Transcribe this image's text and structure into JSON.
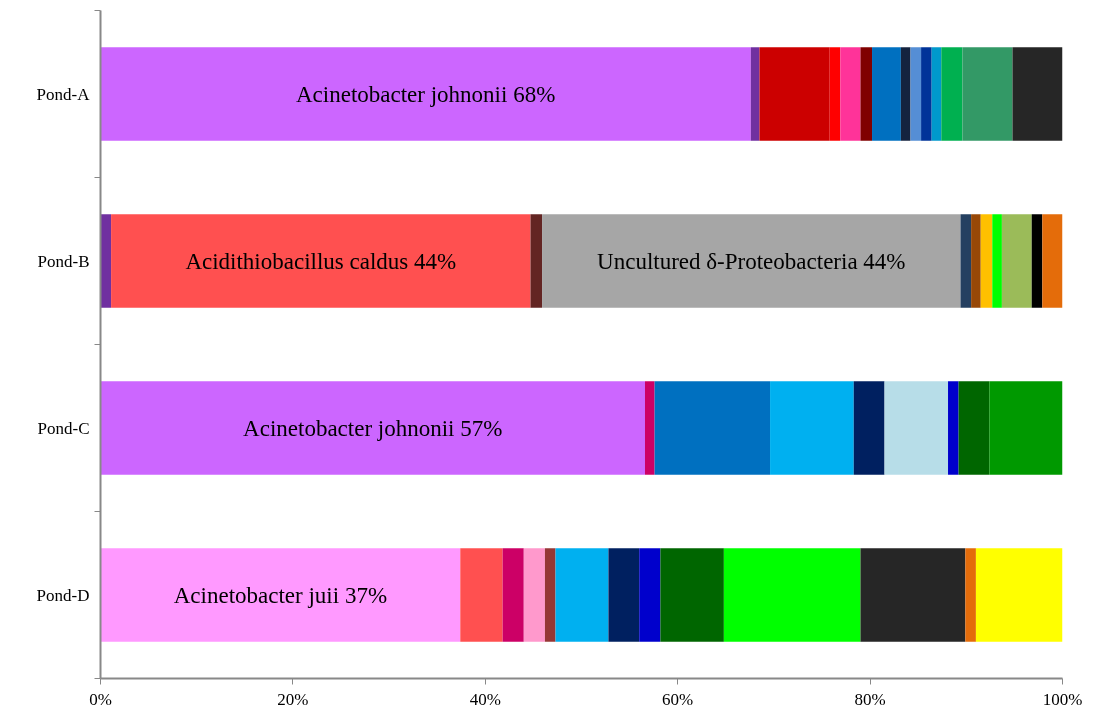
{
  "chart_data": {
    "type": "bar",
    "orientation": "horizontal",
    "stacked": true,
    "categories": [
      "Pond-A",
      "Pond-B",
      "Pond-C",
      "Pond-D"
    ],
    "xlim": [
      0,
      100
    ],
    "xticks": [
      {
        "value": 0,
        "label": "0%"
      },
      {
        "value": 20,
        "label": "20%"
      },
      {
        "value": 40,
        "label": "40%"
      },
      {
        "value": 60,
        "label": "60%"
      },
      {
        "value": 80,
        "label": "80%"
      },
      {
        "value": 100,
        "label": "100%"
      }
    ],
    "series": [
      {
        "values": [
          67.6,
          1.1,
          56.6,
          37.4
        ],
        "colors": [
          "#cc66ff",
          "#7030a0",
          "#cc66ff",
          "#ff99ff"
        ],
        "value_labels": [
          "Acinetobacter johnonii 68%",
          null,
          "Acinetobacter johnonii 57%",
          "Acinetobacter juii 37%"
        ]
      },
      {
        "values": [
          0.9,
          43.6,
          1.0,
          4.4
        ],
        "colors": [
          "#7030a0",
          "#ff5050",
          "#cc0066",
          "#ff5050"
        ],
        "value_labels": [
          null,
          "Acidithiobacillus caldus 44%",
          null,
          null
        ]
      },
      {
        "values": [
          7.3,
          1.2,
          12.0,
          2.2
        ],
        "colors": [
          "#cc0000",
          "#632523",
          "#0070c0",
          "#cc0066"
        ]
      },
      {
        "values": [
          1.1,
          43.5,
          8.7,
          2.2
        ],
        "colors": [
          "#ff0000",
          "#a6a6a6",
          "#00b0f0",
          "#ff99cc"
        ],
        "value_labels": [
          null,
          "Uncultured δ-Proteobacteria 44%",
          null,
          null
        ]
      },
      {
        "values": [
          2.1,
          1.1,
          3.2,
          1.1
        ],
        "colors": [
          "#ff3399",
          "#254061",
          "#002060",
          "#953735"
        ]
      },
      {
        "values": [
          1.2,
          1.0,
          6.6,
          5.5
        ],
        "colors": [
          "#800000",
          "#984807",
          "#b7dde8",
          "#00b0f0"
        ]
      },
      {
        "values": [
          3.0,
          1.2,
          1.1,
          3.2
        ],
        "colors": [
          "#0070c0",
          "#ffc000",
          "#0000cc",
          "#002060"
        ]
      },
      {
        "values": [
          1.0,
          1.0,
          3.2,
          2.2
        ],
        "colors": [
          "#14233f",
          "#00ff00",
          "#006600",
          "#0000cc"
        ]
      },
      {
        "values": [
          1.1,
          3.1,
          7.6,
          6.6
        ],
        "colors": [
          "#558ed5",
          "#9bbb59",
          "#009900",
          "#006600"
        ]
      },
      {
        "values": [
          1.1,
          1.1,
          null,
          14.2
        ],
        "colors": [
          "#003399",
          "#000000",
          null,
          "#00ff00"
        ]
      },
      {
        "values": [
          1.0,
          2.1,
          null,
          10.9
        ],
        "colors": [
          "#0099cc",
          "#e46c0a",
          null,
          "#262626"
        ]
      },
      {
        "values": [
          2.2,
          null,
          null,
          1.1
        ],
        "colors": [
          "#00b050",
          null,
          null,
          "#e46c0a"
        ]
      },
      {
        "values": [
          5.2,
          null,
          null,
          9.0
        ],
        "colors": [
          "#339966",
          null,
          null,
          "#ffff00"
        ]
      },
      {
        "values": [
          5.2,
          null,
          null,
          null
        ],
        "colors": [
          "#262626",
          null,
          null,
          null
        ]
      }
    ]
  }
}
